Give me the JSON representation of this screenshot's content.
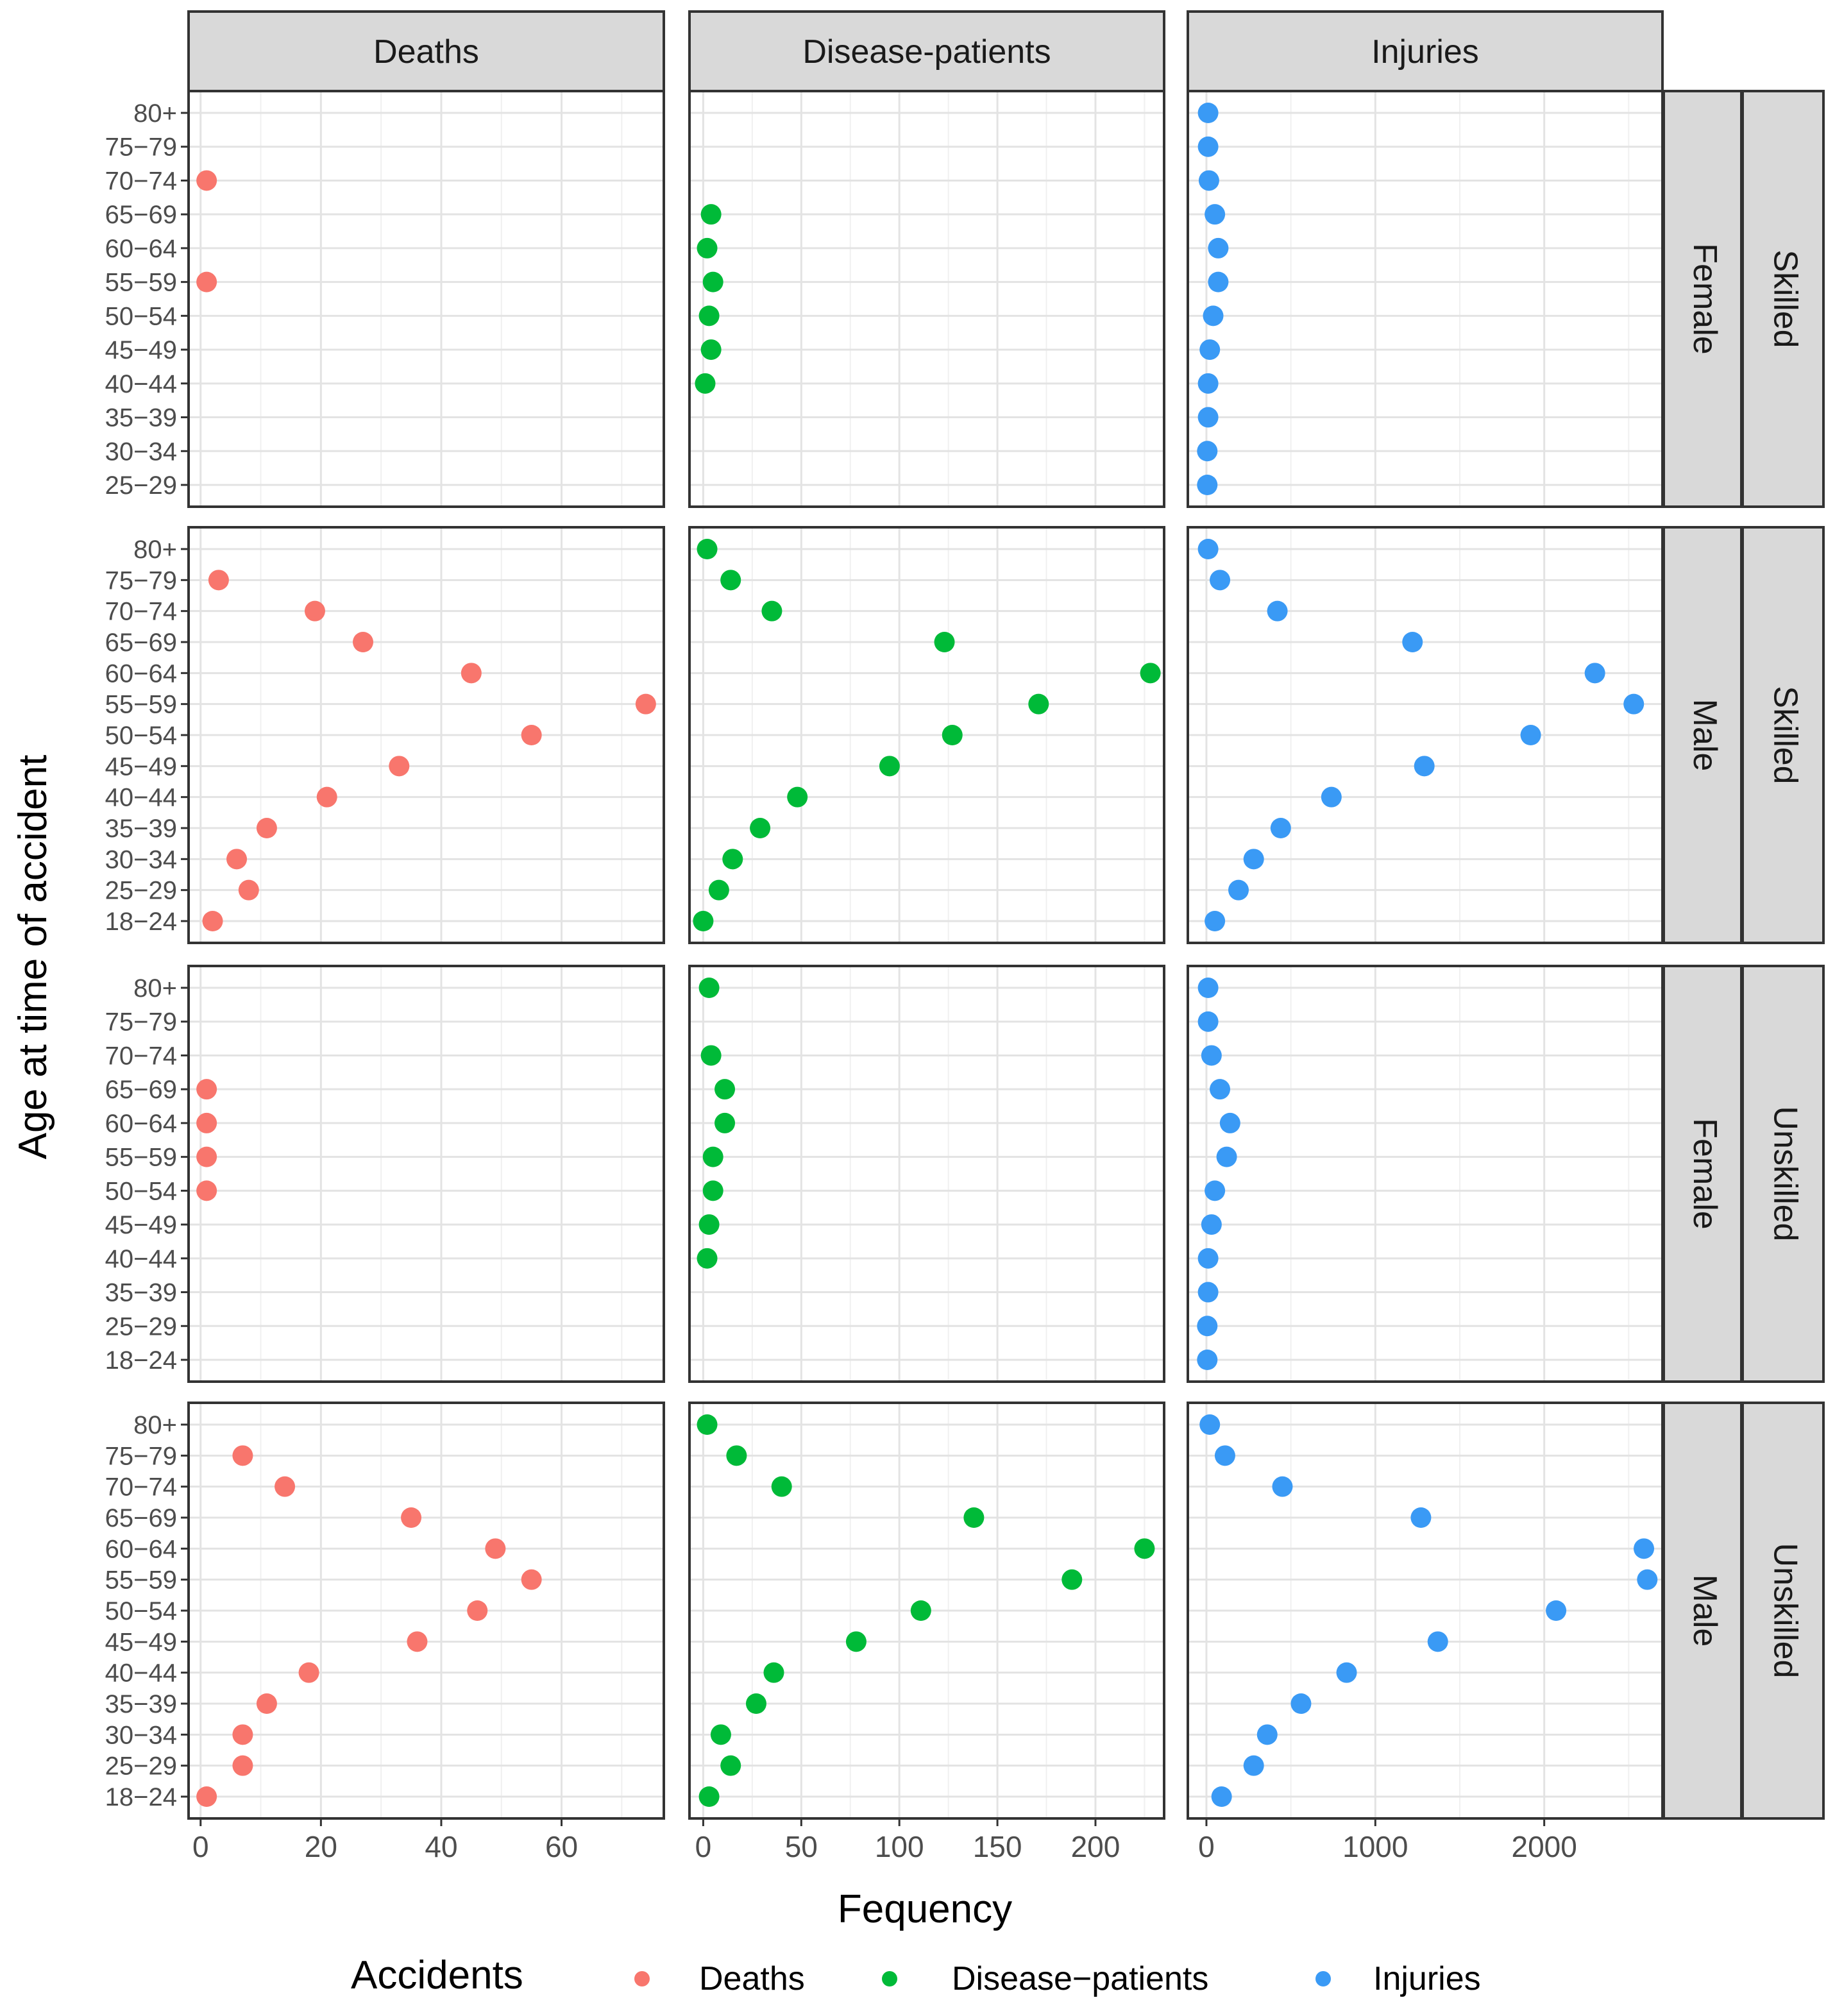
{
  "chart_data": {
    "type": "scatter",
    "title": "",
    "xlabel": "Fequency",
    "ylabel": "Age at time of accident",
    "legend": {
      "title": "Accidents",
      "position": "bottom",
      "entries": [
        {
          "name": "Deaths",
          "color": "#F8766D"
        },
        {
          "name": "Disease-patients",
          "color": "#00BA38"
        },
        {
          "name": "Injuries",
          "color": "#3A9AF5"
        }
      ]
    },
    "columns": [
      {
        "name": "Deaths",
        "color": "#F8766D",
        "xlim": [
          -2,
          77
        ],
        "ticks": [
          0,
          20,
          40,
          60
        ]
      },
      {
        "name": "Disease-patients",
        "color": "#00BA38",
        "xlim": [
          -7,
          235
        ],
        "ticks": [
          0,
          50,
          100,
          150,
          200
        ]
      },
      {
        "name": "Injuries",
        "color": "#3A9AF5",
        "xlim": [
          -110,
          2700
        ],
        "ticks": [
          0,
          1000,
          2000
        ]
      }
    ],
    "rows": [
      {
        "strip_inner": "Female",
        "strip_outer": "Skilled",
        "categories": [
          "25-29",
          "30-34",
          "35-39",
          "40-44",
          "45-49",
          "50-54",
          "55-59",
          "60-64",
          "65-69",
          "70-74",
          "75-79",
          "80+"
        ],
        "series": [
          {
            "name": "Deaths",
            "points": [
              [
                "55-59",
                1
              ],
              [
                "70-74",
                1
              ]
            ]
          },
          {
            "name": "Disease-patients",
            "points": [
              [
                "40-44",
                1
              ],
              [
                "45-49",
                4
              ],
              [
                "50-54",
                3
              ],
              [
                "55-59",
                5
              ],
              [
                "60-64",
                2
              ],
              [
                "65-69",
                4
              ]
            ]
          },
          {
            "name": "Injuries",
            "points": [
              [
                "25-29",
                5
              ],
              [
                "30-34",
                5
              ],
              [
                "35-39",
                10
              ],
              [
                "40-44",
                10
              ],
              [
                "45-49",
                20
              ],
              [
                "50-54",
                40
              ],
              [
                "55-59",
                70
              ],
              [
                "60-64",
                70
              ],
              [
                "65-69",
                50
              ],
              [
                "70-74",
                15
              ],
              [
                "75-79",
                10
              ],
              [
                "80+",
                10
              ]
            ]
          }
        ]
      },
      {
        "strip_inner": "Male",
        "strip_outer": "Skilled",
        "categories": [
          "18-24",
          "25-29",
          "30-34",
          "35-39",
          "40-44",
          "45-49",
          "50-54",
          "55-59",
          "60-64",
          "65-69",
          "70-74",
          "75-79",
          "80+"
        ],
        "series": [
          {
            "name": "Deaths",
            "points": [
              [
                "18-24",
                2
              ],
              [
                "25-29",
                8
              ],
              [
                "30-34",
                6
              ],
              [
                "35-39",
                11
              ],
              [
                "40-44",
                21
              ],
              [
                "45-49",
                33
              ],
              [
                "50-54",
                55
              ],
              [
                "55-59",
                74
              ],
              [
                "60-64",
                45
              ],
              [
                "65-69",
                27
              ],
              [
                "70-74",
                19
              ],
              [
                "75-79",
                3
              ]
            ]
          },
          {
            "name": "Disease-patients",
            "points": [
              [
                "18-24",
                0
              ],
              [
                "25-29",
                8
              ],
              [
                "30-34",
                15
              ],
              [
                "35-39",
                29
              ],
              [
                "40-44",
                48
              ],
              [
                "45-49",
                95
              ],
              [
                "50-54",
                127
              ],
              [
                "55-59",
                171
              ],
              [
                "60-64",
                228
              ],
              [
                "65-69",
                123
              ],
              [
                "70-74",
                35
              ],
              [
                "75-79",
                14
              ],
              [
                "80+",
                2
              ]
            ]
          },
          {
            "name": "Injuries",
            "points": [
              [
                "18-24",
                50
              ],
              [
                "25-29",
                190
              ],
              [
                "30-34",
                280
              ],
              [
                "35-39",
                440
              ],
              [
                "40-44",
                740
              ],
              [
                "45-49",
                1290
              ],
              [
                "50-54",
                1920
              ],
              [
                "55-59",
                2530
              ],
              [
                "60-64",
                2300
              ],
              [
                "65-69",
                1220
              ],
              [
                "70-74",
                420
              ],
              [
                "75-79",
                80
              ],
              [
                "80+",
                10
              ]
            ]
          }
        ]
      },
      {
        "strip_inner": "Female",
        "strip_outer": "Unskilled",
        "categories": [
          "18-24",
          "25-29",
          "35-39",
          "40-44",
          "45-49",
          "50-54",
          "55-59",
          "60-64",
          "65-69",
          "70-74",
          "75-79",
          "80+"
        ],
        "series": [
          {
            "name": "Deaths",
            "points": [
              [
                "50-54",
                1
              ],
              [
                "55-59",
                1
              ],
              [
                "60-64",
                1
              ],
              [
                "65-69",
                1
              ]
            ]
          },
          {
            "name": "Disease-patients",
            "points": [
              [
                "40-44",
                2
              ],
              [
                "45-49",
                3
              ],
              [
                "50-54",
                5
              ],
              [
                "55-59",
                5
              ],
              [
                "60-64",
                11
              ],
              [
                "65-69",
                11
              ],
              [
                "70-74",
                4
              ],
              [
                "80+",
                3
              ]
            ]
          },
          {
            "name": "Injuries",
            "points": [
              [
                "18-24",
                5
              ],
              [
                "25-29",
                5
              ],
              [
                "35-39",
                10
              ],
              [
                "40-44",
                10
              ],
              [
                "45-49",
                30
              ],
              [
                "50-54",
                50
              ],
              [
                "55-59",
                120
              ],
              [
                "60-64",
                140
              ],
              [
                "65-69",
                80
              ],
              [
                "70-74",
                30
              ],
              [
                "75-79",
                10
              ],
              [
                "80+",
                10
              ]
            ]
          }
        ]
      },
      {
        "strip_inner": "Male",
        "strip_outer": "Unskilled",
        "categories": [
          "18-24",
          "25-29",
          "30-34",
          "35-39",
          "40-44",
          "45-49",
          "50-54",
          "55-59",
          "60-64",
          "65-69",
          "70-74",
          "75-79",
          "80+"
        ],
        "series": [
          {
            "name": "Deaths",
            "points": [
              [
                "18-24",
                1
              ],
              [
                "25-29",
                7
              ],
              [
                "30-34",
                7
              ],
              [
                "35-39",
                11
              ],
              [
                "40-44",
                18
              ],
              [
                "45-49",
                36
              ],
              [
                "50-54",
                46
              ],
              [
                "55-59",
                55
              ],
              [
                "60-64",
                49
              ],
              [
                "65-69",
                35
              ],
              [
                "70-74",
                14
              ],
              [
                "75-79",
                7
              ]
            ]
          },
          {
            "name": "Disease-patients",
            "points": [
              [
                "18-24",
                3
              ],
              [
                "25-29",
                14
              ],
              [
                "30-34",
                9
              ],
              [
                "35-39",
                27
              ],
              [
                "40-44",
                36
              ],
              [
                "45-49",
                78
              ],
              [
                "50-54",
                111
              ],
              [
                "55-59",
                188
              ],
              [
                "60-64",
                225
              ],
              [
                "65-69",
                138
              ],
              [
                "70-74",
                40
              ],
              [
                "75-79",
                17
              ],
              [
                "80+",
                2
              ]
            ]
          },
          {
            "name": "Injuries",
            "points": [
              [
                "18-24",
                90
              ],
              [
                "25-29",
                280
              ],
              [
                "30-34",
                360
              ],
              [
                "35-39",
                560
              ],
              [
                "40-44",
                830
              ],
              [
                "45-49",
                1370
              ],
              [
                "50-54",
                2070
              ],
              [
                "55-59",
                2610
              ],
              [
                "60-64",
                2590
              ],
              [
                "65-69",
                1270
              ],
              [
                "70-74",
                450
              ],
              [
                "75-79",
                110
              ],
              [
                "80+",
                20
              ]
            ]
          }
        ]
      }
    ]
  }
}
